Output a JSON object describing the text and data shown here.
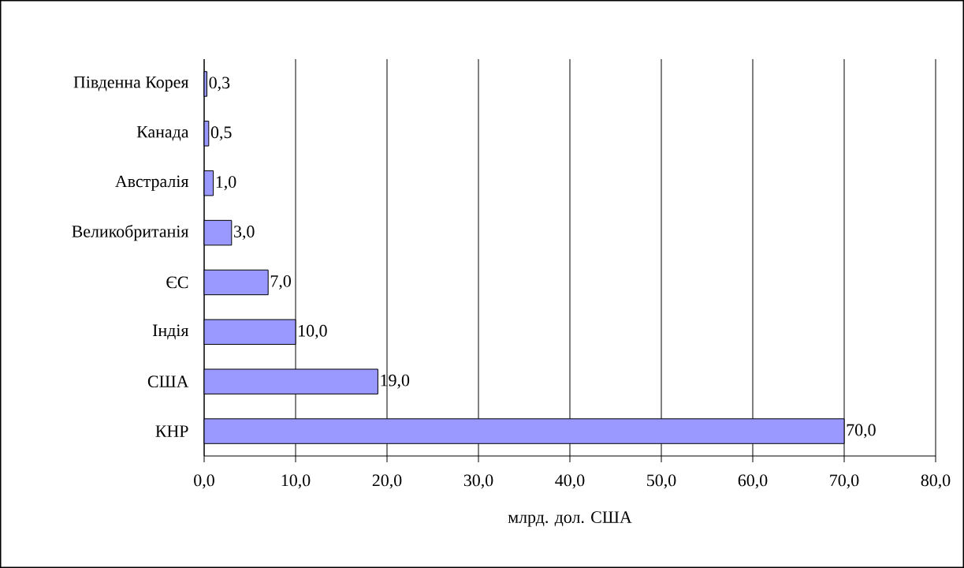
{
  "chart_data": {
    "type": "bar",
    "orientation": "horizontal",
    "categories": [
      "Південна Корея",
      "Канада",
      "Австралія",
      "Великобританія",
      "ЄС",
      "Індія",
      "США",
      "КНР"
    ],
    "values": [
      0.3,
      0.5,
      1.0,
      3.0,
      7.0,
      10.0,
      19.0,
      70.0
    ],
    "value_labels": [
      "0,3",
      "0,5",
      "1,0",
      "3,0",
      "7,0",
      "10,0",
      "19,0",
      "70,0"
    ],
    "color": "#9999ff",
    "xlabel": "млрд. дол. США",
    "xlim": [
      0,
      80
    ],
    "xticks": [
      {
        "value": 0,
        "label": "0,0"
      },
      {
        "value": 10,
        "label": "10,0"
      },
      {
        "value": 20,
        "label": "20,0"
      },
      {
        "value": 30,
        "label": "30,0"
      },
      {
        "value": 40,
        "label": "40,0"
      },
      {
        "value": 50,
        "label": "50,0"
      },
      {
        "value": 60,
        "label": "60,0"
      },
      {
        "value": 70,
        "label": "70,0"
      },
      {
        "value": 80,
        "label": "80,0"
      }
    ],
    "grid": "x"
  }
}
